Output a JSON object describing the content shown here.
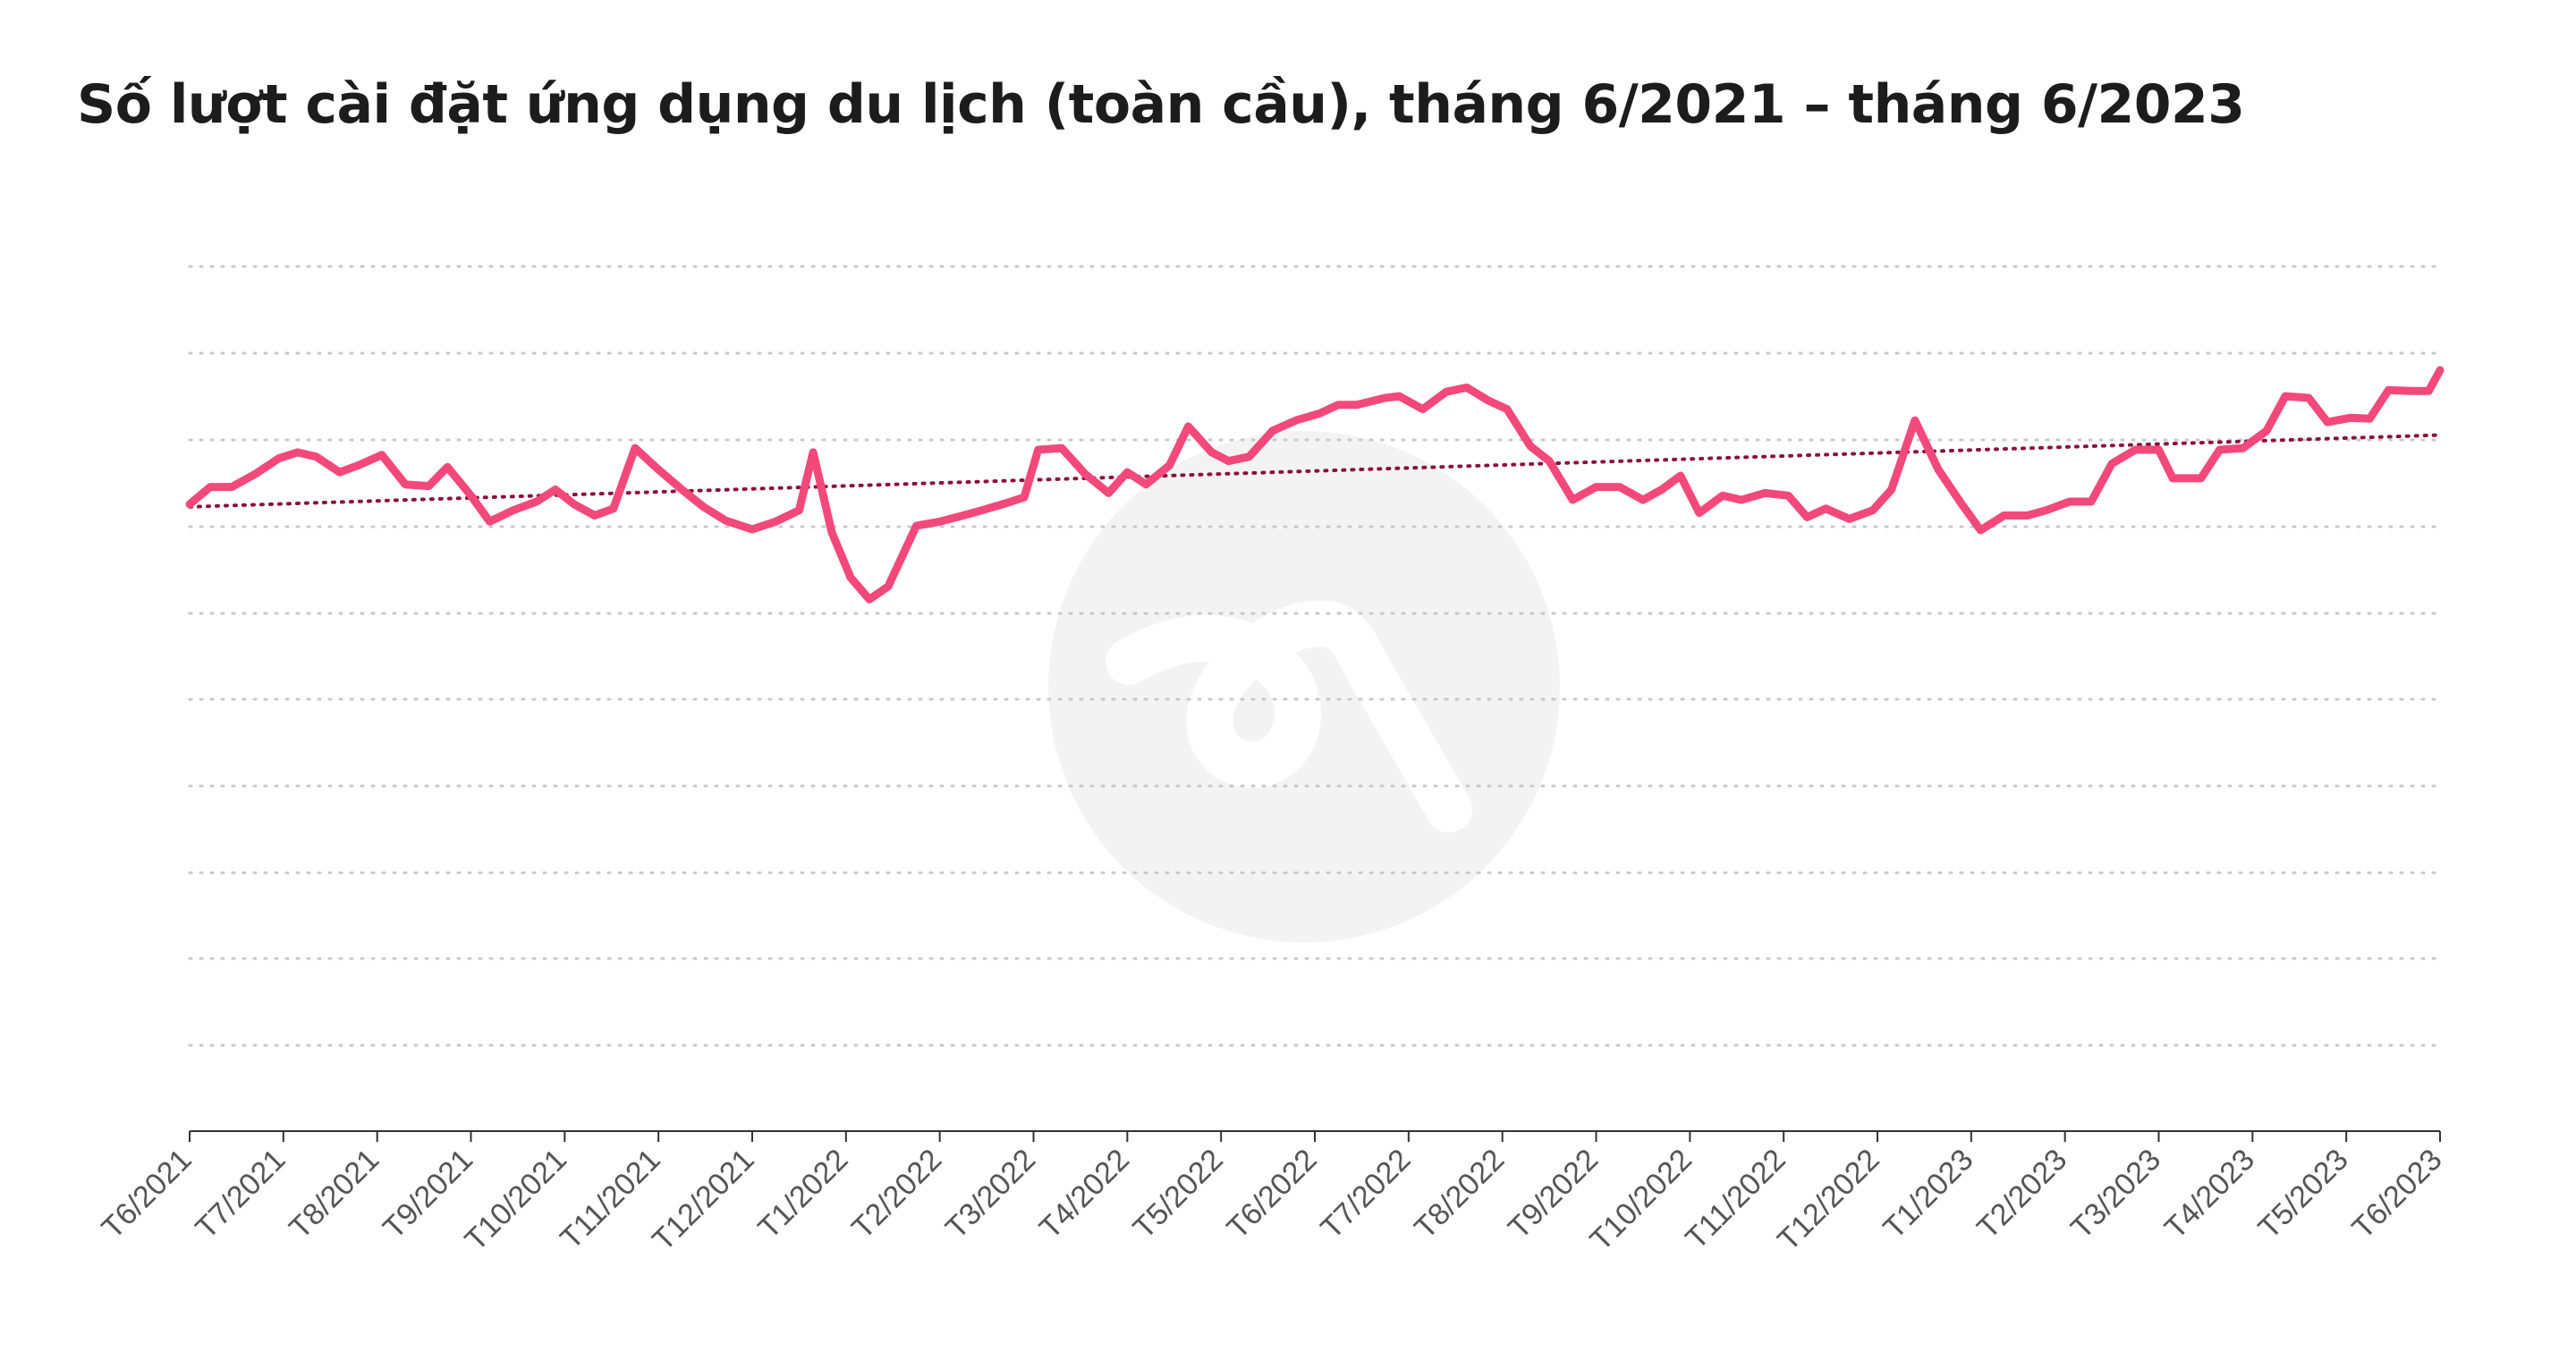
{
  "chart_data": {
    "type": "line",
    "title": "Số lượt cài đặt ứng dụng du lịch (toàn cầu), tháng 6/2021 – tháng 6/2023",
    "xlabel": "",
    "ylabel": "",
    "grid": true,
    "legend": "none",
    "x_ticks": [
      "T6/2021",
      "T7/2021",
      "T8/2021",
      "T9/2021",
      "T10/2021",
      "T11/2021",
      "T12/2021",
      "T1/2022",
      "T2/2022",
      "T3/2022",
      "T4/2022",
      "T5/2022",
      "T6/2022",
      "T7/2022",
      "T8/2022",
      "T9/2022",
      "T10/2022",
      "T11/2022",
      "T12/2022",
      "T1/2023",
      "T2/2023",
      "T3/2023",
      "T4/2023",
      "T5/2023",
      "T6/2023"
    ],
    "x_range": [
      0,
      24
    ],
    "y_ticks": [],
    "y_range": [
      0,
      10
    ],
    "colors": {
      "series": "#f2497a",
      "trend": "#8a1040",
      "grid": "#c8c8c8",
      "axis": "#333333",
      "watermark": "#f3f3f3"
    },
    "series": [
      {
        "values": [
          [
            0.0,
            7.25
          ],
          [
            0.22,
            7.45
          ],
          [
            0.45,
            7.45
          ],
          [
            0.7,
            7.6
          ],
          [
            0.95,
            7.78
          ],
          [
            1.15,
            7.85
          ],
          [
            1.35,
            7.8
          ],
          [
            1.6,
            7.62
          ],
          [
            1.8,
            7.7
          ],
          [
            2.05,
            7.82
          ],
          [
            2.3,
            7.48
          ],
          [
            2.55,
            7.46
          ],
          [
            2.75,
            7.68
          ],
          [
            3.0,
            7.35
          ],
          [
            3.2,
            7.05
          ],
          [
            3.45,
            7.18
          ],
          [
            3.7,
            7.28
          ],
          [
            3.9,
            7.42
          ],
          [
            4.1,
            7.25
          ],
          [
            4.32,
            7.12
          ],
          [
            4.52,
            7.2
          ],
          [
            4.75,
            7.9
          ],
          [
            5.0,
            7.65
          ],
          [
            5.25,
            7.42
          ],
          [
            5.48,
            7.22
          ],
          [
            5.72,
            7.06
          ],
          [
            6.0,
            6.96
          ],
          [
            6.25,
            7.05
          ],
          [
            6.5,
            7.18
          ],
          [
            6.65,
            7.85
          ],
          [
            6.85,
            6.92
          ],
          [
            7.05,
            6.4
          ],
          [
            7.25,
            6.15
          ],
          [
            7.45,
            6.3
          ],
          [
            7.75,
            7.0
          ],
          [
            8.0,
            7.05
          ],
          [
            8.25,
            7.12
          ],
          [
            8.45,
            7.18
          ],
          [
            8.7,
            7.26
          ],
          [
            8.9,
            7.33
          ],
          [
            9.05,
            7.88
          ],
          [
            9.3,
            7.9
          ],
          [
            9.55,
            7.6
          ],
          [
            9.8,
            7.38
          ],
          [
            10.0,
            7.62
          ],
          [
            10.2,
            7.48
          ],
          [
            10.45,
            7.7
          ],
          [
            10.65,
            8.15
          ],
          [
            10.9,
            7.85
          ],
          [
            11.08,
            7.75
          ],
          [
            11.3,
            7.8
          ],
          [
            11.55,
            8.1
          ],
          [
            11.8,
            8.22
          ],
          [
            12.05,
            8.3
          ],
          [
            12.25,
            8.4
          ],
          [
            12.45,
            8.4
          ],
          [
            12.75,
            8.48
          ],
          [
            12.9,
            8.5
          ],
          [
            13.15,
            8.35
          ],
          [
            13.4,
            8.55
          ],
          [
            13.62,
            8.6
          ],
          [
            13.85,
            8.45
          ],
          [
            14.05,
            8.35
          ],
          [
            14.3,
            7.92
          ],
          [
            14.5,
            7.75
          ],
          [
            14.75,
            7.3
          ],
          [
            15.0,
            7.45
          ],
          [
            15.25,
            7.45
          ],
          [
            15.5,
            7.3
          ],
          [
            15.7,
            7.42
          ],
          [
            15.9,
            7.58
          ],
          [
            16.1,
            7.15
          ],
          [
            16.35,
            7.35
          ],
          [
            16.55,
            7.3
          ],
          [
            16.8,
            7.38
          ],
          [
            17.05,
            7.35
          ],
          [
            17.25,
            7.1
          ],
          [
            17.45,
            7.2
          ],
          [
            17.7,
            7.08
          ],
          [
            17.95,
            7.18
          ],
          [
            18.15,
            7.42
          ],
          [
            18.4,
            8.22
          ],
          [
            18.65,
            7.65
          ],
          [
            18.9,
            7.25
          ],
          [
            19.1,
            6.95
          ],
          [
            19.35,
            7.12
          ],
          [
            19.6,
            7.12
          ],
          [
            19.8,
            7.18
          ],
          [
            20.05,
            7.28
          ],
          [
            20.28,
            7.28
          ],
          [
            20.5,
            7.72
          ],
          [
            20.75,
            7.88
          ],
          [
            21.0,
            7.88
          ],
          [
            21.15,
            7.55
          ],
          [
            21.45,
            7.55
          ],
          [
            21.65,
            7.88
          ],
          [
            21.9,
            7.9
          ],
          [
            22.15,
            8.1
          ],
          [
            22.35,
            8.5
          ],
          [
            22.6,
            8.48
          ],
          [
            22.8,
            8.2
          ],
          [
            23.05,
            8.25
          ],
          [
            23.25,
            8.24
          ],
          [
            23.45,
            8.57
          ],
          [
            23.7,
            8.56
          ],
          [
            23.88,
            8.56
          ],
          [
            24.0,
            8.8
          ]
        ]
      }
    ],
    "trendline": {
      "start": [
        0,
        7.22
      ],
      "end": [
        24,
        8.05
      ]
    }
  }
}
